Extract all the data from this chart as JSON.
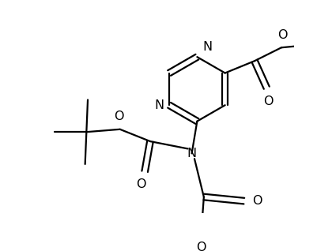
{
  "background": "#ffffff",
  "line_color": "#000000",
  "line_width": 1.6,
  "font_size": 11.5,
  "figsize": [
    4.02,
    3.18
  ],
  "dpi": 100,
  "xlim": [
    0,
    402
  ],
  "ylim": [
    0,
    318
  ]
}
